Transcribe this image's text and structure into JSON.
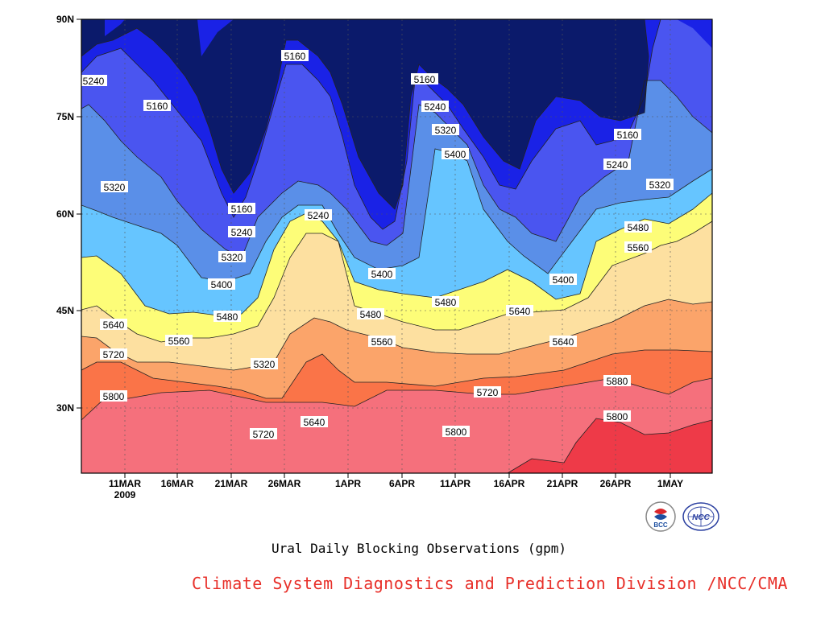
{
  "chart_data": {
    "type": "contour",
    "title": "Ural Daily Blocking Observations (gpm)",
    "x": [
      "2009-03-06",
      "2009-05-05"
    ],
    "xticks": [
      "11MAR",
      "16MAR",
      "21MAR",
      "26MAR",
      "1APR",
      "6APR",
      "11APR",
      "16APR",
      "21APR",
      "26APR",
      "1MAY"
    ],
    "xtick_year": "2009",
    "yticks": [
      "30N",
      "45N",
      "60N",
      "75N",
      "90N"
    ],
    "ylim": [
      20,
      90
    ],
    "levels": [
      5160,
      5240,
      5320,
      5400,
      5480,
      5560,
      5640,
      5720,
      5800,
      5880
    ],
    "fill_colors": [
      "#0b1a6b",
      "#1a22e6",
      "#4a55f0",
      "#5a8fe8",
      "#66c5ff",
      "#fdfd78",
      "#fde0a0",
      "#fba46a",
      "#fa7448",
      "#f5707c",
      "#ee3a48"
    ],
    "grid": true,
    "contour_labels": [
      "5240",
      "5160",
      "5320",
      "5160",
      "5240",
      "5320",
      "5400",
      "5480",
      "5560",
      "5640",
      "5720",
      "5800",
      "5160",
      "5240",
      "5320",
      "5400",
      "5480",
      "5560",
      "5640",
      "5720",
      "5160",
      "5240",
      "5320",
      "5400",
      "5480",
      "5640",
      "5160",
      "5240",
      "5320",
      "5400",
      "5480",
      "5560",
      "5640",
      "5720",
      "5800",
      "5880",
      "5240",
      "5320",
      "5480",
      "5560",
      "5720",
      "5800"
    ]
  },
  "credit": "Climate System Diagnostics and Prediction Division /NCC/CMA",
  "logos": {
    "left": "BCC",
    "right": "NCC"
  }
}
